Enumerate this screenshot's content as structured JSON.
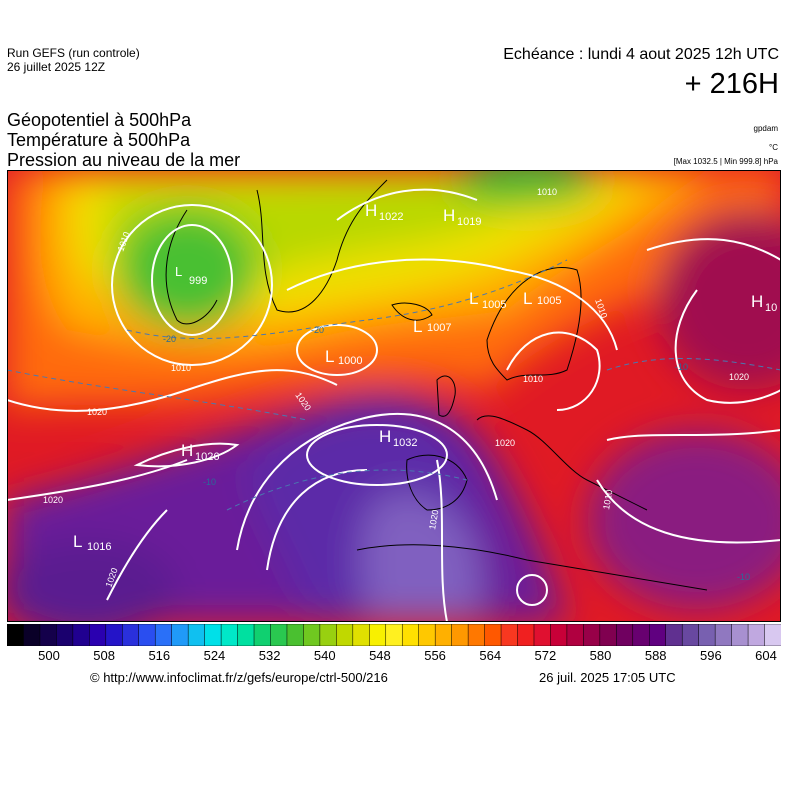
{
  "header": {
    "run_line1": "Run GEFS (run controle)",
    "run_line2": "26 juillet 2025 12Z",
    "valid_time": "Echéance : lundi 4 aout 2025 12h UTC",
    "lead_time": "+ 216H",
    "title_line1": "Géopotentiel à 500hPa",
    "title_line2": "Température à 500hPa",
    "title_line3": "Pression au niveau de la mer",
    "unit1": "gpdam",
    "unit2": "°C",
    "unit3": "[Max 1032.5 | Min 999.8] hPa"
  },
  "map": {
    "pressure_centers": [
      {
        "type": "H",
        "value": "1022"
      },
      {
        "type": "H",
        "value": "1019"
      },
      {
        "type": "L",
        "value": "999"
      },
      {
        "type": "L",
        "value": "1005"
      },
      {
        "type": "L",
        "value": "1005"
      },
      {
        "type": "L",
        "value": "1007"
      },
      {
        "type": "L",
        "value": "1000"
      },
      {
        "type": "H",
        "value": "1032"
      },
      {
        "type": "H",
        "value": "1026"
      },
      {
        "type": "L",
        "value": "1016"
      },
      {
        "type": "H",
        "value": "10"
      }
    ],
    "isobar_labels": [
      "1010",
      "1010",
      "1010",
      "1020",
      "1020",
      "1020",
      "1020",
      "1020",
      "1020",
      "1010",
      "1010",
      "1010",
      "1020"
    ],
    "temperature_labels": [
      "-20",
      "-20",
      "-10",
      "-10",
      "-10"
    ]
  },
  "colorbar": {
    "colors": [
      "#000000",
      "#0a0028",
      "#14004b",
      "#1a006e",
      "#200090",
      "#2a00b0",
      "#2414c8",
      "#2a30dc",
      "#2a4ef0",
      "#2a70f8",
      "#209af8",
      "#10c0f0",
      "#00e0e8",
      "#00e8c8",
      "#00e0a0",
      "#10d070",
      "#2ac850",
      "#4ac030",
      "#70c820",
      "#98d010",
      "#c0d800",
      "#e0e000",
      "#f8f000",
      "#fff020",
      "#ffe000",
      "#ffc800",
      "#ffb000",
      "#ff9800",
      "#ff7800",
      "#ff5800",
      "#f83820",
      "#f02020",
      "#e01030",
      "#c80038",
      "#b00040",
      "#980048",
      "#800050",
      "#700060",
      "#680070",
      "#600080",
      "#603090",
      "#6848a0",
      "#7860b0",
      "#9078c0",
      "#a890d0",
      "#c0a8e0",
      "#d8c8f0"
    ],
    "ticks": [
      "500",
      "508",
      "516",
      "524",
      "532",
      "540",
      "548",
      "556",
      "564",
      "572",
      "580",
      "588",
      "596",
      "604"
    ]
  },
  "footer": {
    "source": "© http://www.infoclimat.fr/z/gefs/europe/ctrl-500/216",
    "generated": "26 juil. 2025 17:05 UTC"
  }
}
